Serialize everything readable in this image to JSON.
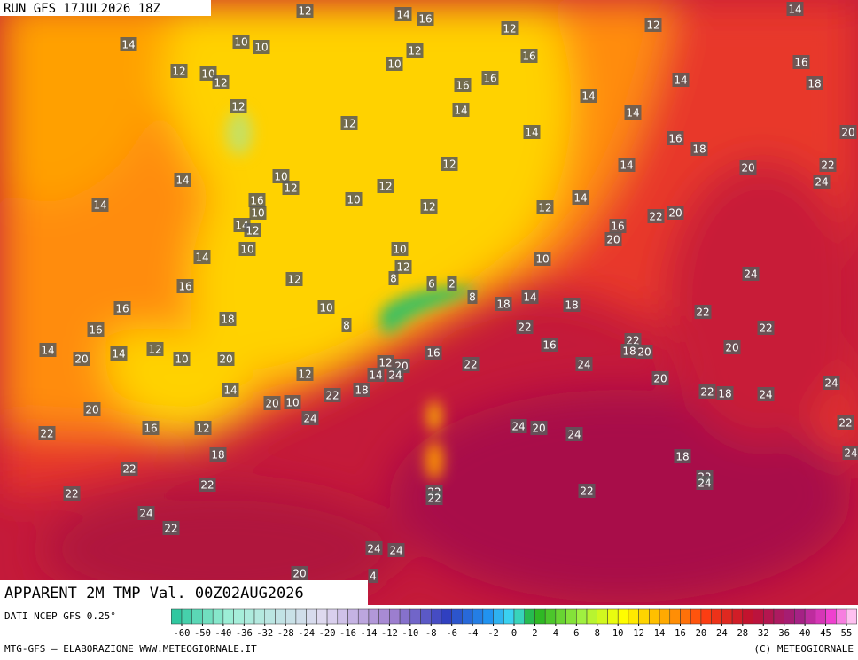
{
  "header": {
    "run": "RUN GFS 17JUL2026 18Z",
    "title": "APPARENT 2M TMP Val. 00Z02AUG2026"
  },
  "map_labels": [
    12,
    14,
    16,
    14,
    12,
    12,
    14,
    10,
    10,
    12,
    16,
    10,
    16,
    12,
    10,
    12,
    16,
    16,
    14,
    18,
    14,
    12,
    12,
    14,
    14,
    14,
    16,
    18,
    20,
    12,
    14,
    20,
    22,
    10,
    12,
    14,
    12,
    24,
    16,
    10,
    14,
    14,
    10,
    12,
    12,
    22,
    20,
    14,
    12,
    16,
    20,
    10,
    10,
    14,
    10,
    12,
    24,
    12,
    8,
    6,
    2,
    16,
    8,
    14,
    18,
    16,
    18,
    10,
    22,
    18,
    8,
    22,
    22,
    16,
    22,
    14,
    14,
    12,
    16,
    18,
    20,
    20,
    20,
    10,
    20,
    16,
    12,
    20,
    22,
    24,
    14,
    24,
    12,
    20,
    24,
    14,
    18,
    22,
    22,
    18,
    24,
    20,
    10,
    20,
    24,
    22,
    16,
    12,
    24,
    20,
    24,
    22,
    18,
    18,
    24,
    22,
    22,
    22,
    24,
    22,
    22,
    22,
    22,
    24,
    22,
    24,
    24,
    20,
    4
  ],
  "colorbar": {
    "source": "DATI NCEP GFS 0.25°",
    "ticks": [
      -60,
      -50,
      -40,
      -36,
      -32,
      -28,
      -24,
      -20,
      -16,
      -14,
      -12,
      -10,
      -8,
      -6,
      -4,
      -2,
      0,
      2,
      4,
      6,
      8,
      10,
      12,
      14,
      16,
      20,
      24,
      28,
      32,
      36,
      40,
      45,
      55
    ]
  },
  "footer": {
    "credit": "MTG-GFS — ELABORAZIONE WWW.METEOGIORNALE.IT",
    "copyright": "(C) METEOGIORNALE"
  }
}
